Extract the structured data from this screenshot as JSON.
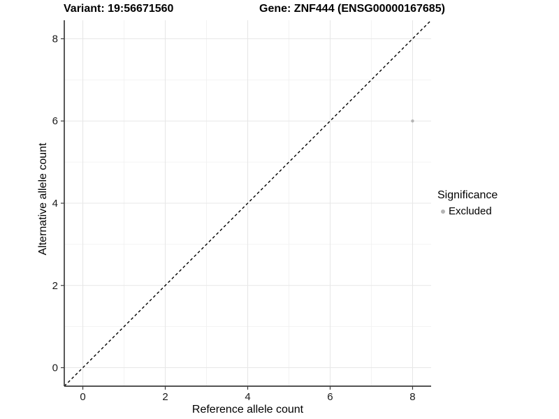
{
  "title_left": "Variant: 19:56671560",
  "title_right": "Gene: ZNF444 (ENSG00000167685)",
  "chart_data": {
    "type": "scatter",
    "title": "Variant: 19:56671560   Gene: ZNF444 (ENSG00000167685)",
    "xlabel": "Reference allele count",
    "ylabel": "Alternative allele count",
    "xlim": [
      -0.45,
      8.45
    ],
    "ylim": [
      -0.45,
      8.45
    ],
    "xticks": [
      0,
      2,
      4,
      6,
      8
    ],
    "yticks": [
      0,
      2,
      4,
      6,
      8
    ],
    "xticks_minor": [
      1,
      3,
      5,
      7
    ],
    "yticks_minor": [
      1,
      3,
      5,
      7
    ],
    "grid": "on",
    "reference_line": {
      "type": "abline",
      "slope": 1,
      "intercept": 0,
      "linestyle": "dashed",
      "color": "#000000"
    },
    "series": [
      {
        "name": "Excluded",
        "color": "#b4b4b4",
        "points": [
          {
            "x": 8,
            "y": 6
          }
        ]
      }
    ],
    "legend": {
      "title": "Significance",
      "position": "right",
      "items": [
        {
          "label": "Excluded",
          "color": "#b4b4b4",
          "marker": "circle"
        }
      ]
    }
  },
  "colors": {
    "background": "#ffffff",
    "axis_line": "#3c3c3c",
    "grid_major": "#e7e7e7",
    "grid_minor": "#f0f0f0",
    "tick_mark": "#3c3c3c",
    "tick_label": "#1a1a1a",
    "title_text": "#000000",
    "point": "#b4b4b4",
    "identity_line": "#000000"
  }
}
